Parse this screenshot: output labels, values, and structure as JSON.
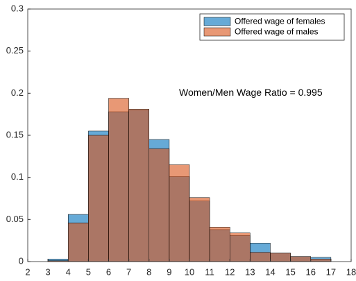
{
  "chart_data": {
    "type": "histogram",
    "annotation": "Women/Men Wage Ratio = 0.995",
    "bins": [
      3,
      4,
      5,
      6,
      7,
      8,
      9,
      10,
      11,
      12,
      13,
      14,
      15,
      16,
      17
    ],
    "series": [
      {
        "name": "Offered wage of females",
        "color": "#0072BD",
        "values": [
          0.003,
          0.056,
          0.155,
          0.178,
          0.18,
          0.145,
          0.101,
          0.072,
          0.038,
          0.031,
          0.022,
          0.01,
          0.006,
          0.005
        ]
      },
      {
        "name": "Offered wage of males",
        "color": "#D95319",
        "values": [
          0.001,
          0.046,
          0.15,
          0.194,
          0.181,
          0.134,
          0.115,
          0.076,
          0.041,
          0.034,
          0.011,
          0.01,
          0.006,
          0.003
        ]
      }
    ],
    "xlim": [
      2,
      18
    ],
    "xticks": [
      2,
      3,
      4,
      5,
      6,
      7,
      8,
      9,
      10,
      11,
      12,
      13,
      14,
      15,
      16,
      17,
      18
    ],
    "ylim": [
      0,
      0.3
    ],
    "yticks": [
      0,
      0.05,
      0.1,
      0.15,
      0.2,
      0.25,
      0.3
    ],
    "legend": "northeast"
  }
}
